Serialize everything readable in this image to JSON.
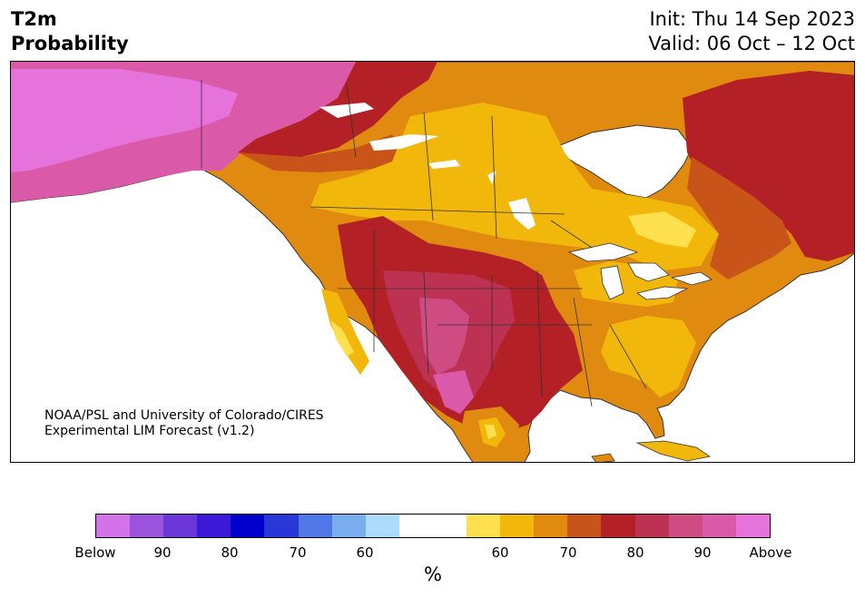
{
  "title": {
    "line1": "T2m",
    "line2": "Probability"
  },
  "init": {
    "line1": "Init: Thu 14 Sep 2023",
    "line2": "Valid: 06 Oct – 12 Oct"
  },
  "credit": {
    "line1": "NOAA/PSL and University of Colorado/CIRES",
    "line2": "Experimental LIM Forecast (v1.2)"
  },
  "colorbar": {
    "colors": [
      "#d472ea",
      "#9b53dd",
      "#6b36d8",
      "#3a19d8",
      "#0000cc",
      "#2838d8",
      "#4f77e6",
      "#78aef0",
      "#acdcfc",
      "#ffffff",
      "#ffffff",
      "#fee04f",
      "#f2b70b",
      "#e18a10",
      "#c85419",
      "#b32025",
      "#bd3153",
      "#ce4c82",
      "#da5aa9",
      "#e672dc"
    ],
    "labels": [
      "Below",
      "90",
      "80",
      "70",
      "60",
      "60",
      "70",
      "80",
      "90",
      "Above"
    ],
    "unit": "%"
  },
  "map": {
    "palette": {
      "ocean": "#ffffff",
      "border": "#333333",
      "p50": "#ffffff",
      "p55": "#fee04f",
      "p60": "#f2b70b",
      "p65": "#e18a10",
      "p70": "#c85419",
      "p75": "#b32025",
      "p80": "#bd3153",
      "p85": "#ce4c82",
      "p90": "#da5aa9",
      "p95": "#e672dc"
    }
  }
}
